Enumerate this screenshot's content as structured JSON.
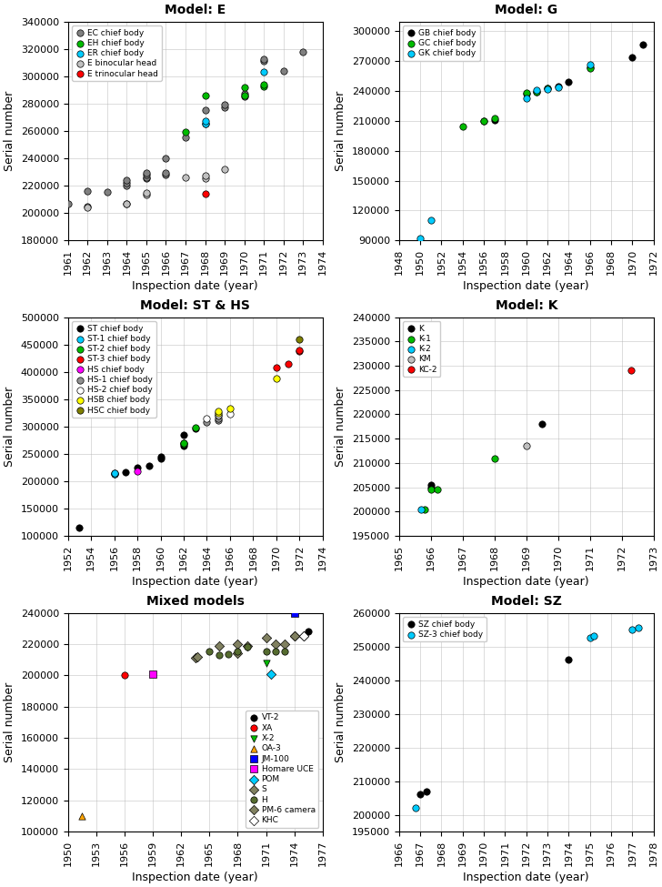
{
  "chart_data": [
    {
      "type": "scatter",
      "title": "Model: E",
      "xlabel": "Inspection date (year)",
      "ylabel": "Serial number",
      "xlim": [
        1961,
        1974
      ],
      "ylim": [
        180000,
        340000
      ],
      "xticks": [
        1961,
        1962,
        1963,
        1964,
        1965,
        1966,
        1967,
        1968,
        1969,
        1970,
        1971,
        1972,
        1973,
        1974
      ],
      "yticks": [
        180000,
        200000,
        220000,
        240000,
        260000,
        280000,
        300000,
        320000,
        340000
      ],
      "grid": true,
      "legend": "upper left",
      "series": [
        {
          "name": "EC chief body",
          "color": "#808080",
          "marker": "circle",
          "x": [
            1961,
            1962,
            1962,
            1963,
            1964,
            1964,
            1964,
            1964,
            1965,
            1965,
            1965,
            1965,
            1966,
            1966,
            1966,
            1967,
            1968,
            1968,
            1969,
            1969,
            1970,
            1970,
            1971,
            1971,
            1972,
            1973
          ],
          "values": [
            207000,
            204500,
            216000,
            215500,
            207000,
            220000,
            222000,
            224000,
            225000,
            226000,
            228000,
            229000,
            228000,
            229000,
            240000,
            255500,
            265000,
            275000,
            277000,
            279500,
            285000,
            287000,
            311000,
            312500,
            303500,
            318000
          ]
        },
        {
          "name": "EH chief body",
          "color": "#00bb00",
          "marker": "circle",
          "x": [
            1967,
            1968,
            1970,
            1970,
            1971,
            1971
          ],
          "values": [
            259000,
            285500,
            286000,
            292000,
            292500,
            294000
          ]
        },
        {
          "name": "ER chief body",
          "color": "#00ccff",
          "marker": "circle",
          "x": [
            1968,
            1968,
            1971
          ],
          "values": [
            265000,
            267000,
            303000
          ]
        },
        {
          "name": "E binocular head",
          "color": "#c0c0c0",
          "marker": "circle",
          "x": [
            1962,
            1964,
            1965,
            1965,
            1967,
            1968,
            1968,
            1969
          ],
          "values": [
            204000,
            206500,
            213500,
            214500,
            226000,
            225500,
            227000,
            232000
          ]
        },
        {
          "name": "E trinocular head",
          "color": "#ff0000",
          "marker": "circle",
          "x": [
            1968
          ],
          "values": [
            214000
          ]
        }
      ]
    },
    {
      "type": "scatter",
      "title": "Model: G",
      "xlabel": "Inspection date (year)",
      "ylabel": "Serial number",
      "xlim": [
        1948,
        1972
      ],
      "ylim": [
        90000,
        310000
      ],
      "xticks": [
        1948,
        1950,
        1952,
        1954,
        1956,
        1958,
        1960,
        1962,
        1964,
        1966,
        1968,
        1970,
        1972
      ],
      "yticks": [
        90000,
        120000,
        150000,
        180000,
        210000,
        240000,
        270000,
        300000
      ],
      "grid": true,
      "legend": "upper left",
      "series": [
        {
          "name": "GB chief body",
          "color": "#000000",
          "marker": "circle",
          "x": [
            1956,
            1957,
            1960,
            1961,
            1962,
            1963,
            1964,
            1966,
            1970,
            1971
          ],
          "values": [
            210000,
            211000,
            237000,
            239000,
            243000,
            245000,
            249000,
            264000,
            274000,
            287000
          ]
        },
        {
          "name": "GC chief body",
          "color": "#00bb00",
          "marker": "circle",
          "x": [
            1954,
            1956,
            1957,
            1960,
            1961,
            1962,
            1966
          ],
          "values": [
            204000,
            210000,
            213000,
            238000,
            239500,
            243000,
            263000
          ]
        },
        {
          "name": "GK chief body",
          "color": "#00ccff",
          "marker": "circle",
          "x": [
            1950,
            1951,
            1960,
            1961,
            1962,
            1963,
            1966
          ],
          "values": [
            92000,
            110000,
            233000,
            241000,
            241500,
            244000,
            267000
          ]
        }
      ]
    },
    {
      "type": "scatter",
      "title": "Model: ST & HS",
      "xlabel": "Inspection date (year)",
      "ylabel": "Serial number",
      "xlim": [
        1952,
        1974
      ],
      "ylim": [
        100000,
        500000
      ],
      "xticks": [
        1952,
        1954,
        1956,
        1958,
        1960,
        1962,
        1964,
        1966,
        1968,
        1970,
        1972,
        1974
      ],
      "yticks": [
        100000,
        150000,
        200000,
        250000,
        300000,
        350000,
        400000,
        450000,
        500000
      ],
      "grid": true,
      "legend": "upper left",
      "series": [
        {
          "name": "ST chief body",
          "color": "#000000",
          "marker": "circle",
          "x": [
            1953,
            1956,
            1956,
            1957,
            1958,
            1959,
            1960,
            1960,
            1962,
            1962,
            1962,
            1963
          ],
          "values": [
            116000,
            213000,
            215000,
            216000,
            225000,
            228000,
            242000,
            245000,
            265000,
            270000,
            285000,
            297000
          ]
        },
        {
          "name": "ST-1 chief body",
          "color": "#00ccff",
          "marker": "circle",
          "x": [
            1956,
            1956
          ],
          "values": [
            213000,
            215000
          ]
        },
        {
          "name": "ST-2 chief body",
          "color": "#00bb00",
          "marker": "circle",
          "x": [
            1962,
            1962,
            1963
          ],
          "values": [
            268000,
            270000,
            298000
          ]
        },
        {
          "name": "ST-3 chief body",
          "color": "#ff0000",
          "marker": "circle",
          "x": [
            1970,
            1971,
            1972,
            1972
          ],
          "values": [
            408000,
            415000,
            437000,
            440000
          ]
        },
        {
          "name": "HS chief body",
          "color": "#ff00ff",
          "marker": "circle",
          "x": [
            1958
          ],
          "values": [
            219000
          ]
        },
        {
          "name": "HS-1 chief body",
          "color": "#909090",
          "marker": "circle",
          "x": [
            1964,
            1965,
            1965
          ],
          "values": [
            308000,
            311000,
            315000
          ]
        },
        {
          "name": "HS-2 chief body",
          "color": "#ffffff",
          "marker": "circle",
          "x": [
            1964,
            1965,
            1965,
            1966
          ],
          "values": [
            315000,
            320000,
            322000,
            323000
          ]
        },
        {
          "name": "HSB chief body",
          "color": "#ffff00",
          "marker": "circle",
          "x": [
            1965,
            1965,
            1966,
            1970
          ],
          "values": [
            325000,
            328000,
            333000,
            388000
          ]
        },
        {
          "name": "HSC chief body",
          "color": "#808000",
          "marker": "circle",
          "x": [
            1972
          ],
          "values": [
            460000
          ]
        }
      ]
    },
    {
      "type": "scatter",
      "title": "Model: K",
      "xlabel": "Inspection date (year)",
      "ylabel": "Serial number",
      "xlim": [
        1965,
        1973
      ],
      "ylim": [
        195000,
        240000
      ],
      "xticks": [
        1965,
        1966,
        1967,
        1968,
        1969,
        1970,
        1971,
        1972,
        1973
      ],
      "yticks": [
        195000,
        200000,
        205000,
        210000,
        215000,
        220000,
        225000,
        230000,
        235000,
        240000
      ],
      "grid": true,
      "legend": "upper left",
      "series": [
        {
          "name": "K",
          "color": "#000000",
          "marker": "circle",
          "x": [
            1966,
            1966,
            1969.5
          ],
          "values": [
            205000,
            205500,
            218000
          ]
        },
        {
          "name": "K-1",
          "color": "#00bb00",
          "marker": "circle",
          "x": [
            1965.8,
            1966,
            1966.2,
            1968
          ],
          "values": [
            200500,
            204500,
            204500,
            211000
          ]
        },
        {
          "name": "K-2",
          "color": "#00ccff",
          "marker": "circle",
          "x": [
            1965.7
          ],
          "values": [
            200500
          ]
        },
        {
          "name": "KM",
          "color": "#c0c0c0",
          "marker": "circle",
          "x": [
            1969
          ],
          "values": [
            213500
          ]
        },
        {
          "name": "KC-2",
          "color": "#ff0000",
          "marker": "circle",
          "x": [
            1972.3
          ],
          "values": [
            229000
          ]
        }
      ]
    },
    {
      "type": "scatter",
      "title": "Mixed models",
      "xlabel": "Inspection date (year)",
      "ylabel": "Serial number",
      "xlim": [
        1950,
        1977
      ],
      "ylim": [
        100000,
        240000
      ],
      "xticks": [
        1950,
        1953,
        1956,
        1959,
        1962,
        1965,
        1968,
        1971,
        1974,
        1977
      ],
      "yticks": [
        100000,
        120000,
        140000,
        160000,
        180000,
        200000,
        220000,
        240000
      ],
      "grid": true,
      "legend": "lower right",
      "series": [
        {
          "name": "VT-2",
          "color": "#000000",
          "marker": "circle",
          "x": [
            1975.5
          ],
          "values": [
            228000
          ]
        },
        {
          "name": "XA",
          "color": "#ff0000",
          "marker": "circle",
          "x": [
            1956
          ],
          "values": [
            200000
          ]
        },
        {
          "name": "X-2",
          "color": "#00bb00",
          "marker": "triangle_down",
          "x": [
            1971
          ],
          "values": [
            208000
          ]
        },
        {
          "name": "OA-3",
          "color": "#ffa500",
          "marker": "triangle_up",
          "x": [
            1951.5
          ],
          "values": [
            110000
          ]
        },
        {
          "name": "JM-100",
          "color": "#0000ff",
          "marker": "square",
          "x": [
            1974
          ],
          "values": [
            240000
          ]
        },
        {
          "name": "Homare UCE",
          "color": "#ff00ff",
          "marker": "square",
          "x": [
            1959
          ],
          "values": [
            201000
          ]
        },
        {
          "name": "POM",
          "color": "#00ccff",
          "marker": "diamond",
          "x": [
            1971.5
          ],
          "values": [
            201000
          ]
        },
        {
          "name": "S",
          "color": "#808060",
          "marker": "diamond",
          "x": [
            1963.5,
            1963.7,
            1966,
            1968,
            1968,
            1969,
            1971,
            1972,
            1973,
            1974,
            1975
          ],
          "values": [
            211000,
            211500,
            219000,
            214000,
            220000,
            219000,
            224000,
            220000,
            220000,
            225000,
            225000
          ]
        },
        {
          "name": "H",
          "color": "#556B2F",
          "marker": "circle",
          "x": [
            1965,
            1966,
            1967,
            1968,
            1969,
            1971,
            1972,
            1973
          ],
          "values": [
            215000,
            213000,
            213500,
            215000,
            218000,
            215000,
            215500,
            215000
          ]
        },
        {
          "name": "PM-6 camera",
          "color": "#808060",
          "marker": "diamond",
          "x": [
            1974
          ],
          "values": [
            225000
          ]
        },
        {
          "name": "KHC",
          "color": "#ffffff",
          "marker": "diamond",
          "x": [
            1975
          ],
          "values": [
            225000
          ]
        }
      ]
    },
    {
      "type": "scatter",
      "title": "Model: SZ",
      "xlabel": "Inspection date (year)",
      "ylabel": "Serial number",
      "xlim": [
        1966,
        1978
      ],
      "ylim": [
        195000,
        260000
      ],
      "xticks": [
        1966,
        1967,
        1968,
        1969,
        1970,
        1971,
        1972,
        1973,
        1974,
        1975,
        1976,
        1977,
        1978
      ],
      "yticks": [
        195000,
        200000,
        210000,
        220000,
        230000,
        240000,
        250000,
        260000
      ],
      "grid": true,
      "legend": "upper left",
      "series": [
        {
          "name": "SZ chief body",
          "color": "#000000",
          "marker": "circle",
          "x": [
            1967,
            1967.3,
            1974
          ],
          "values": [
            206000,
            207000,
            246000
          ]
        },
        {
          "name": "SZ-3 chief body",
          "color": "#00ccff",
          "marker": "circle",
          "x": [
            1966.8,
            1975,
            1975.2,
            1977,
            1977.3
          ],
          "values": [
            202000,
            252500,
            253000,
            255000,
            255500
          ]
        }
      ]
    }
  ]
}
